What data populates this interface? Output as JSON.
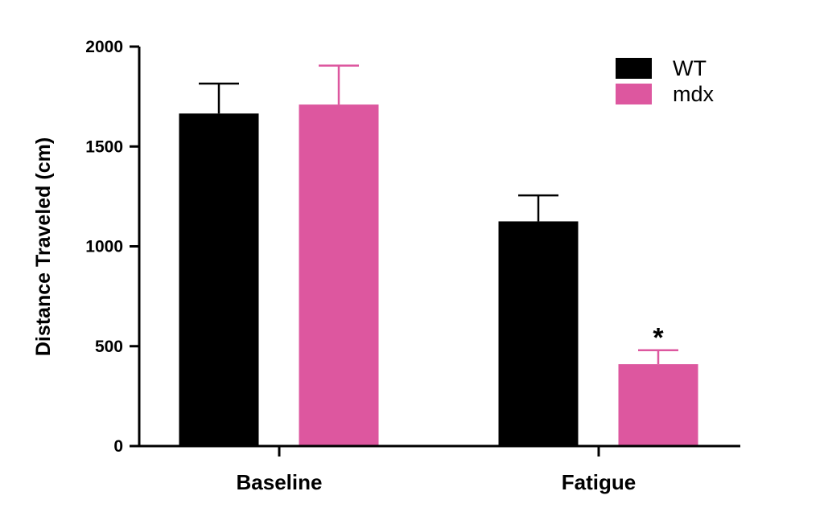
{
  "chart_data": {
    "type": "bar",
    "title": "",
    "xlabel": "",
    "ylabel": "Distance Traveled (cm)",
    "ylim": [
      0,
      2000
    ],
    "yticks": [
      0,
      500,
      1000,
      1500,
      2000
    ],
    "categories": [
      "Baseline",
      "Fatigue"
    ],
    "series": [
      {
        "name": "WT",
        "color": "#000000",
        "values": [
          1665,
          1125
        ],
        "errors": [
          150,
          130
        ]
      },
      {
        "name": "mdx",
        "color": "#dd579f",
        "values": [
          1710,
          410
        ],
        "errors": [
          195,
          70
        ]
      }
    ],
    "annotations": [
      {
        "text": "*",
        "category": "Fatigue",
        "series": "mdx"
      }
    ],
    "legend": "top-right",
    "grid": false
  }
}
